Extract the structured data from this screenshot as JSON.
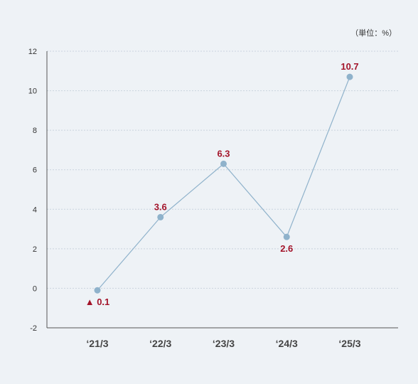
{
  "chart_data": {
    "type": "line",
    "unit_label": "（単位：%）",
    "categories": [
      "‘21/3",
      "‘22/3",
      "‘23/3",
      "‘24/3",
      "‘25/3"
    ],
    "values": [
      -0.1,
      3.6,
      6.3,
      2.6,
      10.7
    ],
    "data_labels": [
      "▲ 0.1",
      "3.6",
      "6.3",
      "2.6",
      "10.7"
    ],
    "ylim": [
      -2,
      12
    ],
    "yticks": [
      -2,
      0,
      2,
      4,
      6,
      8,
      10,
      12
    ],
    "grid": true,
    "colors": {
      "line": "#8fb2cb",
      "marker": "#8fb2cb",
      "data_label": "#a3142a",
      "grid": "#c9d3dd",
      "axis": "#555555",
      "background": "#eef2f6"
    }
  }
}
